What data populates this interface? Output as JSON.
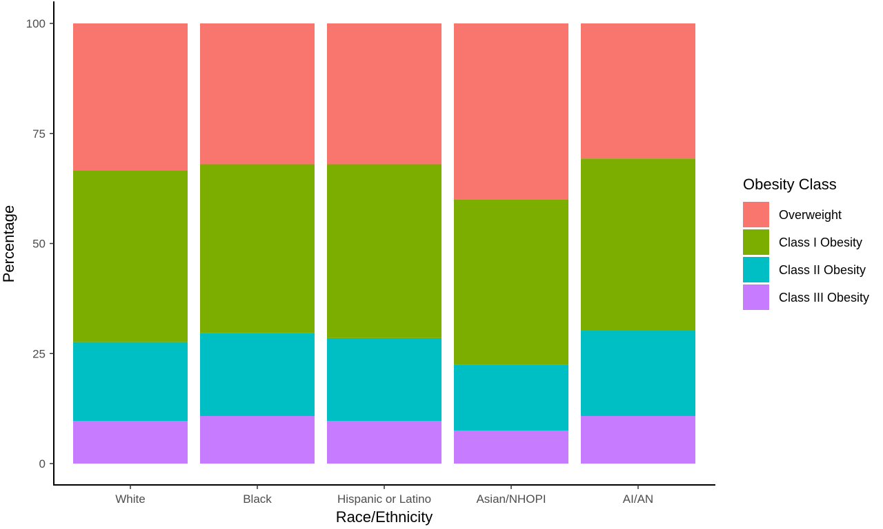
{
  "chart_data": {
    "type": "bar",
    "stacked": true,
    "categories": [
      "White",
      "Black",
      "Hispanic or Latino",
      "Asian/NHOPI",
      "AI/AN"
    ],
    "series": [
      {
        "name": "Class III Obesity",
        "color": "#C77CFF",
        "values": [
          9.7,
          10.8,
          9.7,
          7.5,
          10.8
        ]
      },
      {
        "name": "Class II Obesity",
        "color": "#00BFC4",
        "values": [
          17.9,
          18.9,
          18.8,
          14.9,
          19.4
        ]
      },
      {
        "name": "Class I Obesity",
        "color": "#7CAE00",
        "values": [
          39.0,
          38.3,
          39.5,
          37.6,
          39.1
        ]
      },
      {
        "name": "Overweight",
        "color": "#F8766D",
        "values": [
          33.4,
          32.0,
          32.0,
          40.0,
          30.7
        ]
      }
    ],
    "legend": {
      "title": "Obesity Class",
      "position": "right",
      "order": [
        "Overweight",
        "Class I Obesity",
        "Class II Obesity",
        "Class III Obesity"
      ]
    },
    "xlabel": "Race/Ethnicity",
    "ylabel": "Percentage",
    "ylim": [
      0,
      100
    ],
    "yticks": [
      0,
      25,
      50,
      75,
      100
    ],
    "grid": false
  }
}
